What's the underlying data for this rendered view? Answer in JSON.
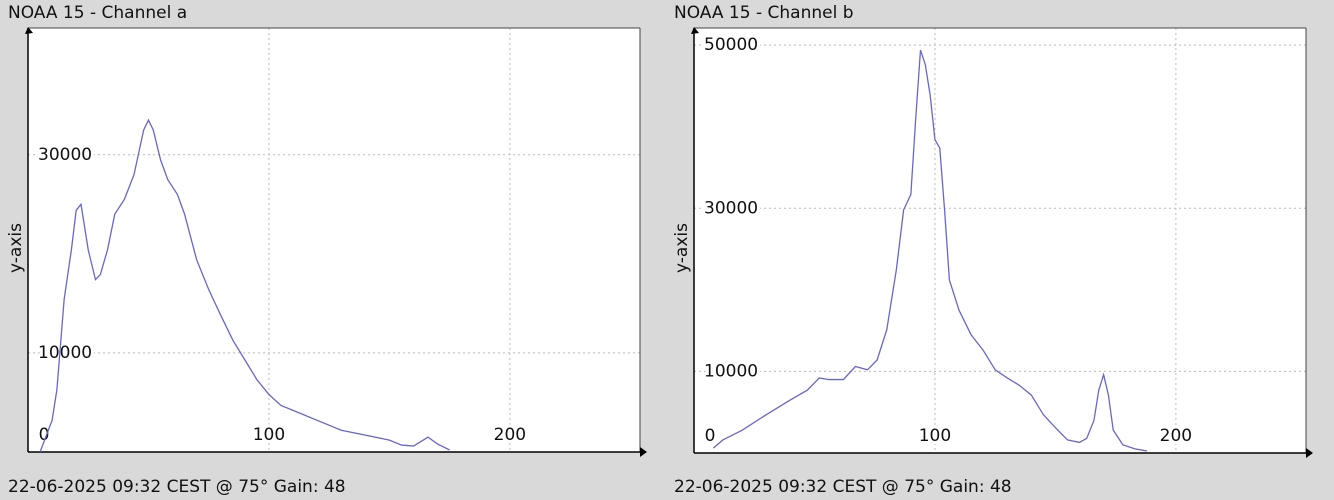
{
  "chart_data": [
    {
      "type": "line",
      "title": "NOAA 15 - Channel a",
      "footer": "22-06-2025 09:32 CEST @ 75° Gain: 48",
      "ylabel": "y-axis",
      "x": [
        5,
        10,
        12,
        15,
        18,
        20,
        22,
        25,
        28,
        30,
        33,
        36,
        40,
        44,
        48,
        50,
        52,
        55,
        58,
        62,
        65,
        70,
        75,
        80,
        85,
        90,
        95,
        100,
        105,
        110,
        120,
        130,
        140,
        150,
        155,
        160,
        166,
        170,
        175
      ],
      "series": [
        {
          "color": "#6666cc",
          "values": [
            0,
            3200,
            6300,
            15400,
            20400,
            24400,
            25000,
            20400,
            17400,
            17900,
            20400,
            24000,
            25500,
            28000,
            32500,
            33500,
            32500,
            29500,
            27500,
            26000,
            24000,
            19400,
            16400,
            13800,
            11300,
            9300,
            7300,
            5800,
            4700,
            4200,
            3200,
            2200,
            1700,
            1200,
            700,
            600,
            1500,
            800,
            200
          ]
        }
      ],
      "xlim": [
        0,
        254
      ],
      "ylim": [
        0,
        42800
      ],
      "xticks": [
        0,
        100,
        200
      ],
      "yticks": [
        10000,
        30000
      ],
      "grid": true
    },
    {
      "type": "line",
      "title": "NOAA 15 - Channel b",
      "footer": "22-06-2025 09:32 CEST @ 75° Gain: 48",
      "ylabel": "y-axis",
      "x": [
        8,
        12,
        20,
        30,
        40,
        47,
        52,
        56,
        62,
        67,
        72,
        76,
        80,
        84,
        87,
        90,
        92,
        94,
        96,
        98,
        100,
        102,
        104,
        106,
        110,
        115,
        120,
        125,
        130,
        135,
        140,
        145,
        150,
        155,
        160,
        163,
        166,
        168,
        170,
        172,
        174,
        178,
        183,
        188
      ],
      "series": [
        {
          "color": "#6666cc",
          "values": [
            600,
            1600,
            2800,
            4700,
            6500,
            7700,
            9200,
            9000,
            9000,
            10600,
            10200,
            11400,
            15100,
            22500,
            29800,
            31700,
            40900,
            49400,
            47600,
            43900,
            38400,
            37400,
            29800,
            21200,
            17500,
            14500,
            12600,
            10200,
            9200,
            8300,
            7100,
            4700,
            3100,
            1600,
            1300,
            1800,
            4000,
            7700,
            9600,
            7100,
            2800,
            1000,
            500,
            250
          ]
        }
      ],
      "xlim": [
        0,
        254
      ],
      "ylim": [
        0,
        52100
      ],
      "xticks": [
        0,
        100,
        200
      ],
      "yticks": [
        10000,
        30000,
        50000
      ],
      "grid": true
    }
  ]
}
